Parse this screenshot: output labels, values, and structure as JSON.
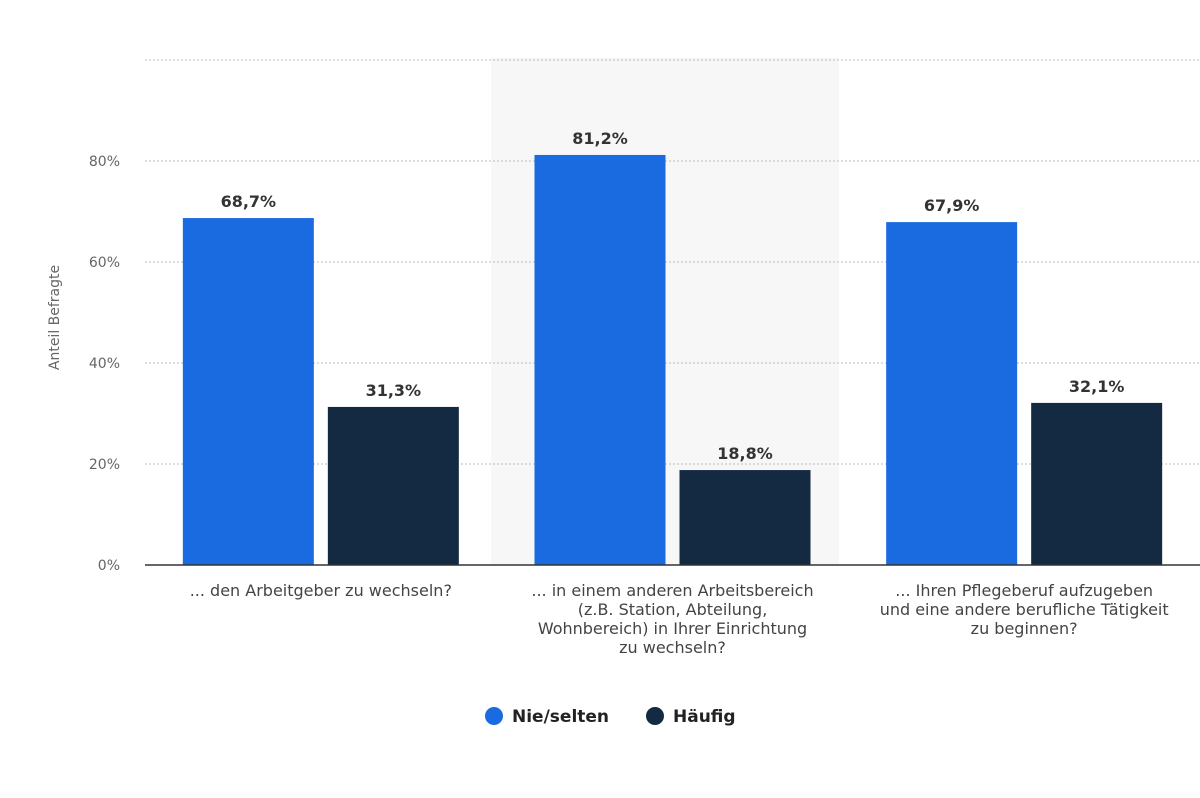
{
  "chart_data": {
    "type": "bar",
    "ylabel": "Anteil Befragte",
    "ylim": [
      0,
      100
    ],
    "yticks": [
      0,
      20,
      40,
      60,
      80
    ],
    "tick_suffix": "%",
    "grid": true,
    "legend_position": "bottom",
    "highlighted_category_index": 1,
    "categories": [
      [
        "... den Arbeitgeber zu wechseln?"
      ],
      [
        "... in einem anderen Arbeitsbereich",
        "(z.B. Station, Abteilung,",
        "Wohnbereich) in Ihrer Einrichtung",
        "zu wechseln?"
      ],
      [
        "... Ihren Pflegeberuf aufzugeben",
        "und eine andere berufliche Tätigkeit",
        "zu beginnen?"
      ]
    ],
    "series": [
      {
        "name": "Nie/selten",
        "color": "#1a6be0",
        "values": [
          68.7,
          81.2,
          67.9
        ],
        "labels": [
          "68,7%",
          "81,2%",
          "67,9%"
        ]
      },
      {
        "name": "Häufig",
        "color": "#142a42",
        "values": [
          31.3,
          18.8,
          32.1
        ],
        "labels": [
          "31,3%",
          "18,8%",
          "32,1%"
        ]
      }
    ]
  }
}
